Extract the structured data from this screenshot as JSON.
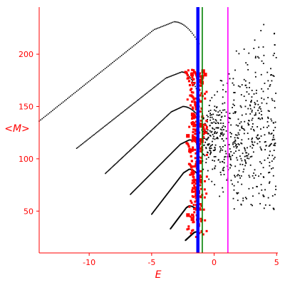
{
  "chart_data": {
    "type": "scatter",
    "title": "",
    "xlabel": "E",
    "ylabel": "<M>",
    "xlim": [
      -14,
      5.1
    ],
    "ylim": [
      10,
      245
    ],
    "xticks": [
      -10,
      -5,
      0,
      5
    ],
    "yticks": [
      50,
      100,
      150,
      200
    ],
    "xtick_labels": [
      "-10",
      "-5",
      "0",
      "5"
    ],
    "ytick_labels": [
      "50",
      "100",
      "150",
      "200"
    ],
    "grid": false,
    "legend": "none",
    "colors": {
      "axes": "#ff0000",
      "black_points": "#000000",
      "red_points": "#ff0000",
      "blue_line": "#0000ff",
      "green_line": "#008000",
      "magenta_line": "#ff00ff"
    },
    "vertical_lines": [
      {
        "x": -1.3,
        "color": "#0000ff",
        "width": "thick"
      },
      {
        "x": -0.95,
        "color": "#008000",
        "width": "thin"
      },
      {
        "x": 1.1,
        "color": "#ff00ff",
        "width": "thin"
      }
    ],
    "black_branches": [
      {
        "x_start": -14.0,
        "y_start": 136,
        "x_peak": -3.2,
        "y_peak": 231,
        "x_end": -1.2,
        "y_end": 210
      },
      {
        "x_start": -11.0,
        "y_start": 110,
        "x_peak": -2.6,
        "y_peak": 183,
        "x_end": -1.2,
        "y_end": 160
      },
      {
        "x_start": -8.7,
        "y_start": 86,
        "x_peak": -2.5,
        "y_peak": 150,
        "x_end": -1.2,
        "y_end": 140
      },
      {
        "x_start": -6.7,
        "y_start": 66,
        "x_peak": -2.0,
        "y_peak": 118,
        "x_end": -1.2,
        "y_end": 115
      },
      {
        "x_start": -5.0,
        "y_start": 47,
        "x_peak": -2.0,
        "y_peak": 90,
        "x_end": -1.3,
        "y_end": 85
      },
      {
        "x_start": -3.5,
        "y_start": 33,
        "x_peak": -2.0,
        "y_peak": 55,
        "x_end": -1.3,
        "y_end": 50
      },
      {
        "x_start": -2.3,
        "y_start": 22,
        "x_peak": -1.5,
        "y_peak": 30,
        "x_end": -1.3,
        "y_end": 30
      }
    ],
    "black_cloud": {
      "x_range": [
        -1.0,
        5.0
      ],
      "y_center": 120,
      "y_spread_low": 60,
      "y_spread_high": 240,
      "count": 620
    },
    "red_cloud": {
      "x_range": [
        -2.1,
        -0.5
      ],
      "y_range": [
        25,
        185
      ],
      "count": 260
    }
  }
}
